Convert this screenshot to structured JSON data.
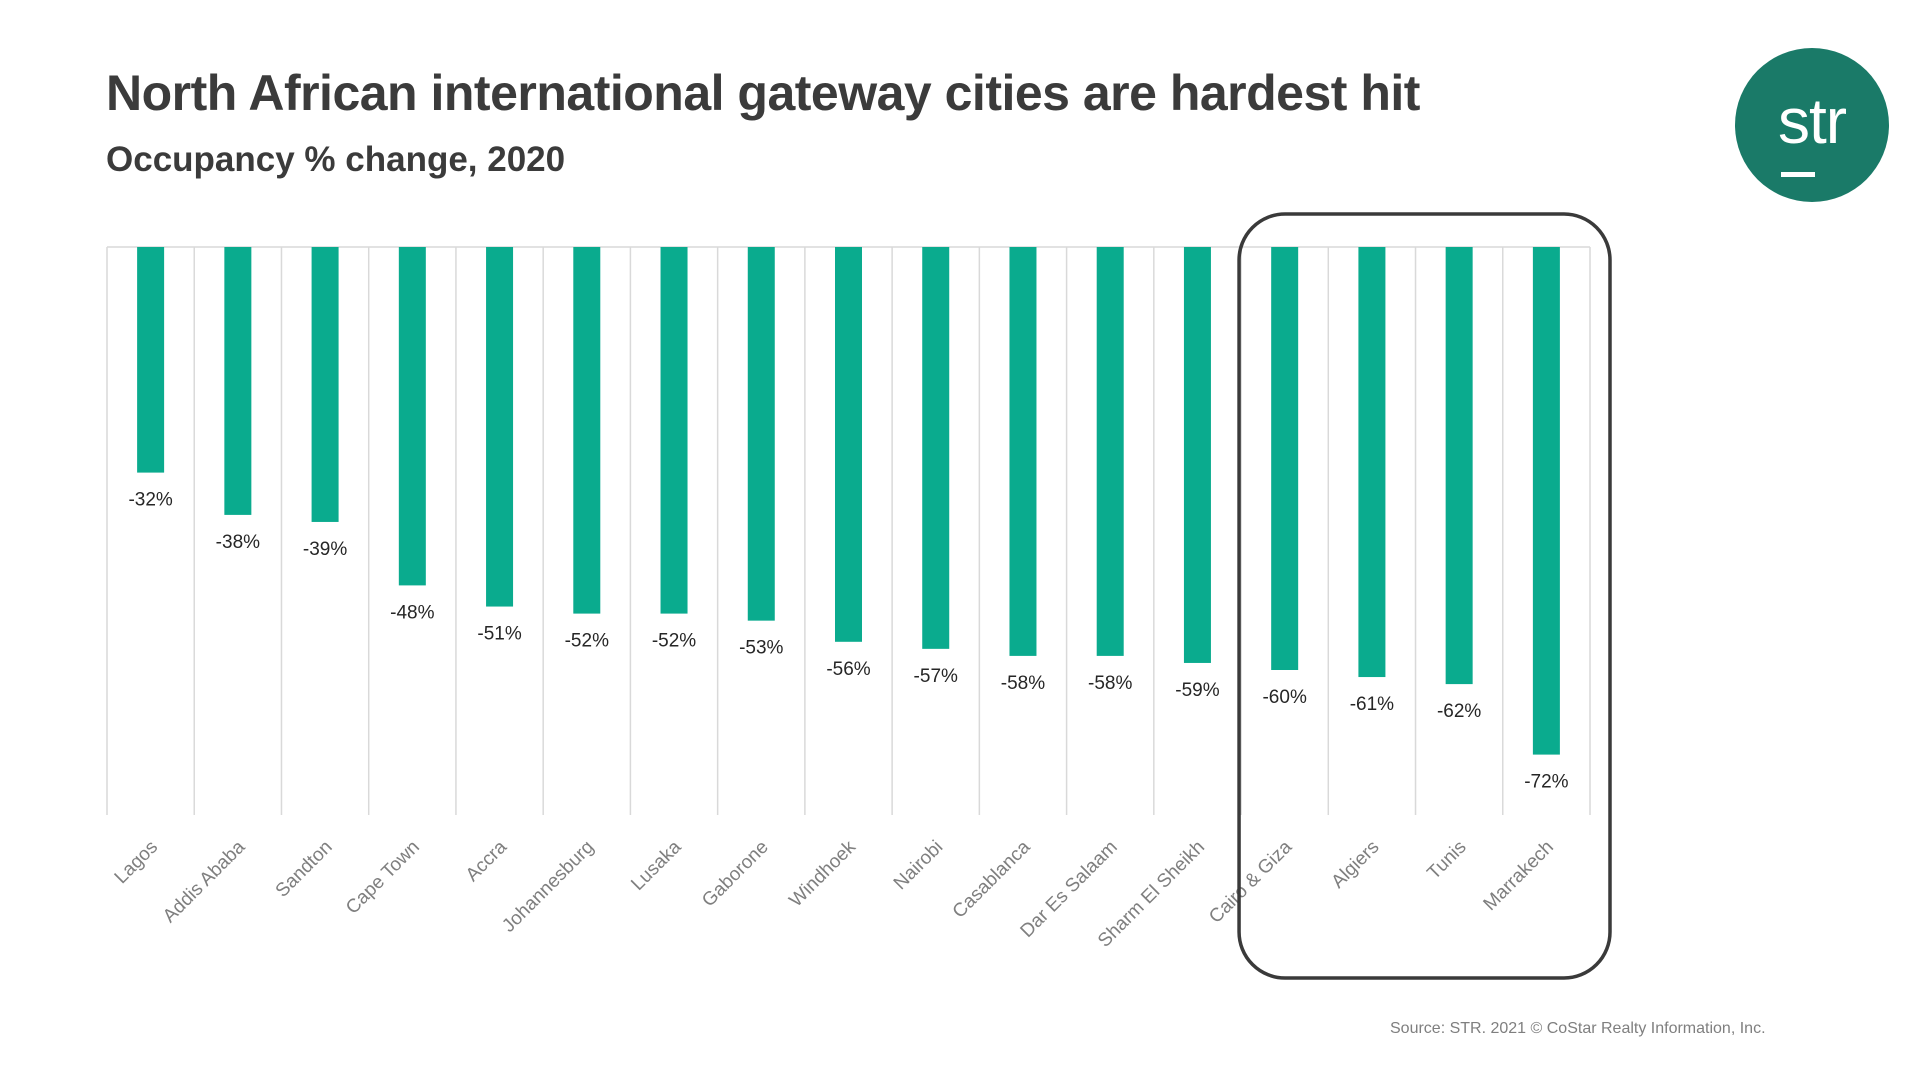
{
  "header": {
    "title": "North African international gateway cities are hardest hit",
    "subtitle": "Occupancy % change, 2020"
  },
  "logo": {
    "text": "str",
    "icon": "str-logo-icon"
  },
  "footer": {
    "source": "Source: STR. 2021 © CoStar Realty Information, Inc."
  },
  "colors": {
    "bar": "#0aab8e",
    "logo": "#1a7a68",
    "highlight_box": "#3a3a3a",
    "gridline": "#d9d9d9",
    "category_label": "#7f7f7f",
    "value_label": "#262626"
  },
  "chart_data": {
    "type": "bar",
    "orientation": "vertical",
    "categories": [
      "Lagos",
      "Addis Ababa",
      "Sandton",
      "Cape Town",
      "Accra",
      "Johannesburg",
      "Lusaka",
      "Gaborone",
      "Windhoek",
      "Nairobi",
      "Casablanca",
      "Dar Es Salaam",
      "Sharm El Sheikh",
      "Cairo & Giza",
      "Algiers",
      "Tunis",
      "Marrakech"
    ],
    "values": [
      -32,
      -38,
      -39,
      -48,
      -51,
      -52,
      -52,
      -53,
      -56,
      -57,
      -58,
      -58,
      -59,
      -60,
      -61,
      -62,
      -72
    ],
    "data_labels": [
      "-32%",
      "-38%",
      "-39%",
      "-48%",
      "-51%",
      "-52%",
      "-52%",
      "-53%",
      "-56%",
      "-57%",
      "-58%",
      "-58%",
      "-59%",
      "-60%",
      "-61%",
      "-62%",
      "-72%"
    ],
    "title": "North African international gateway cities are hardest hit",
    "subtitle": "Occupancy % change, 2020",
    "xlabel": "",
    "ylabel": "",
    "ylim": [
      -80,
      0
    ],
    "vertical_gridlines": true,
    "legend": "none",
    "highlighted_categories": [
      "Cairo & Giza",
      "Algiers",
      "Tunis",
      "Marrakech"
    ]
  }
}
